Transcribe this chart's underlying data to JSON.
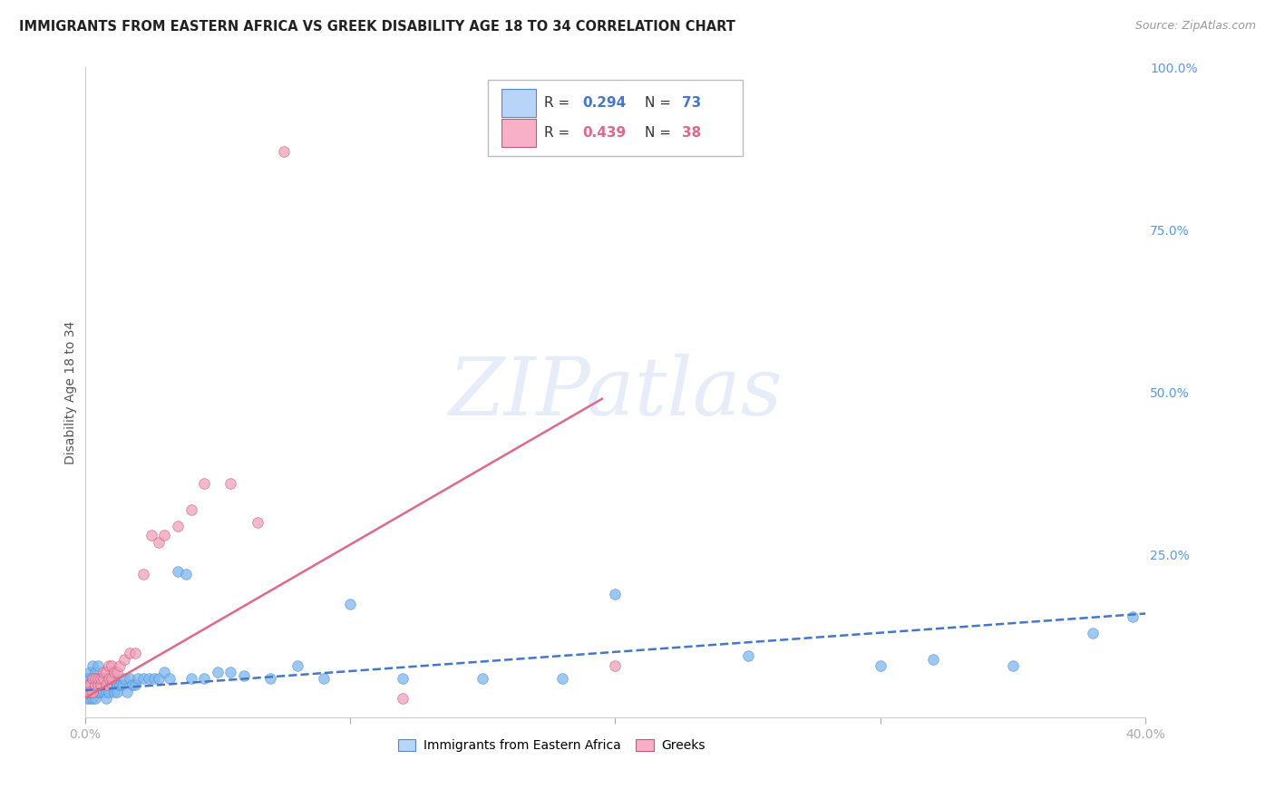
{
  "title": "IMMIGRANTS FROM EASTERN AFRICA VS GREEK DISABILITY AGE 18 TO 34 CORRELATION CHART",
  "source": "Source: ZipAtlas.com",
  "ylabel": "Disability Age 18 to 34",
  "right_y_ticks": [
    "100.0%",
    "75.0%",
    "50.0%",
    "25.0%"
  ],
  "right_y_tick_vals": [
    1.0,
    0.75,
    0.5,
    0.25
  ],
  "xlim": [
    0.0,
    0.4
  ],
  "ylim": [
    0.0,
    1.0
  ],
  "background_color": "#ffffff",
  "grid_color": "#e0e0e8",
  "watermark_text": "ZIPatlas",
  "blue_scatter_x": [
    0.001,
    0.001,
    0.001,
    0.001,
    0.002,
    0.002,
    0.002,
    0.002,
    0.002,
    0.003,
    0.003,
    0.003,
    0.003,
    0.004,
    0.004,
    0.004,
    0.004,
    0.005,
    0.005,
    0.005,
    0.005,
    0.006,
    0.006,
    0.006,
    0.007,
    0.007,
    0.007,
    0.008,
    0.008,
    0.008,
    0.009,
    0.009,
    0.01,
    0.01,
    0.011,
    0.011,
    0.012,
    0.012,
    0.013,
    0.014,
    0.015,
    0.016,
    0.017,
    0.018,
    0.019,
    0.02,
    0.022,
    0.024,
    0.026,
    0.028,
    0.03,
    0.032,
    0.035,
    0.038,
    0.04,
    0.045,
    0.05,
    0.055,
    0.06,
    0.07,
    0.08,
    0.09,
    0.1,
    0.12,
    0.15,
    0.18,
    0.2,
    0.25,
    0.3,
    0.32,
    0.35,
    0.38,
    0.395
  ],
  "blue_scatter_y": [
    0.05,
    0.04,
    0.06,
    0.03,
    0.05,
    0.04,
    0.06,
    0.03,
    0.07,
    0.04,
    0.06,
    0.03,
    0.08,
    0.04,
    0.06,
    0.03,
    0.07,
    0.05,
    0.04,
    0.06,
    0.08,
    0.05,
    0.04,
    0.06,
    0.05,
    0.04,
    0.06,
    0.04,
    0.06,
    0.03,
    0.05,
    0.04,
    0.05,
    0.06,
    0.04,
    0.06,
    0.05,
    0.04,
    0.05,
    0.05,
    0.06,
    0.04,
    0.06,
    0.05,
    0.05,
    0.06,
    0.06,
    0.06,
    0.06,
    0.06,
    0.07,
    0.06,
    0.225,
    0.22,
    0.06,
    0.06,
    0.07,
    0.07,
    0.065,
    0.06,
    0.08,
    0.06,
    0.175,
    0.06,
    0.06,
    0.06,
    0.19,
    0.095,
    0.08,
    0.09,
    0.08,
    0.13,
    0.155
  ],
  "pink_scatter_x": [
    0.001,
    0.001,
    0.002,
    0.002,
    0.003,
    0.003,
    0.004,
    0.004,
    0.005,
    0.005,
    0.006,
    0.006,
    0.007,
    0.007,
    0.008,
    0.008,
    0.009,
    0.009,
    0.01,
    0.01,
    0.011,
    0.012,
    0.013,
    0.015,
    0.017,
    0.019,
    0.022,
    0.025,
    0.028,
    0.03,
    0.035,
    0.04,
    0.045,
    0.055,
    0.065,
    0.075,
    0.12,
    0.2
  ],
  "pink_scatter_y": [
    0.05,
    0.04,
    0.05,
    0.04,
    0.06,
    0.04,
    0.05,
    0.06,
    0.05,
    0.06,
    0.05,
    0.06,
    0.06,
    0.07,
    0.05,
    0.07,
    0.06,
    0.08,
    0.06,
    0.08,
    0.07,
    0.07,
    0.08,
    0.09,
    0.1,
    0.1,
    0.22,
    0.28,
    0.27,
    0.28,
    0.295,
    0.32,
    0.36,
    0.36,
    0.3,
    0.87,
    0.03,
    0.08
  ],
  "blue_trend_x": [
    0.0,
    0.4
  ],
  "blue_trend_y": [
    0.042,
    0.16
  ],
  "pink_trend_x": [
    0.0,
    0.195
  ],
  "pink_trend_y": [
    0.03,
    0.49
  ],
  "blue_color": "#7ab8f0",
  "blue_edge": "#5588cc",
  "pink_color": "#f0a0b8",
  "pink_edge": "#cc5577",
  "blue_line_color": "#4477cc",
  "pink_line_color": "#e06888",
  "legend_box_blue_fc": "#b8d4f8",
  "legend_box_blue_ec": "#5588cc",
  "legend_box_pink_fc": "#f8b0c8",
  "legend_box_pink_ec": "#cc5577",
  "legend_R_color_blue": "#4477cc",
  "legend_N_color_blue": "#4477cc",
  "legend_R_color_pink": "#e06888",
  "legend_N_color_pink": "#e06888",
  "bottom_legend_labels": [
    "Immigrants from Eastern Africa",
    "Greeks"
  ],
  "x_tick_positions": [
    0.0,
    0.1,
    0.2,
    0.3,
    0.4
  ],
  "x_tick_labels": [
    "0.0%",
    "",
    "",
    "",
    "40.0%"
  ]
}
